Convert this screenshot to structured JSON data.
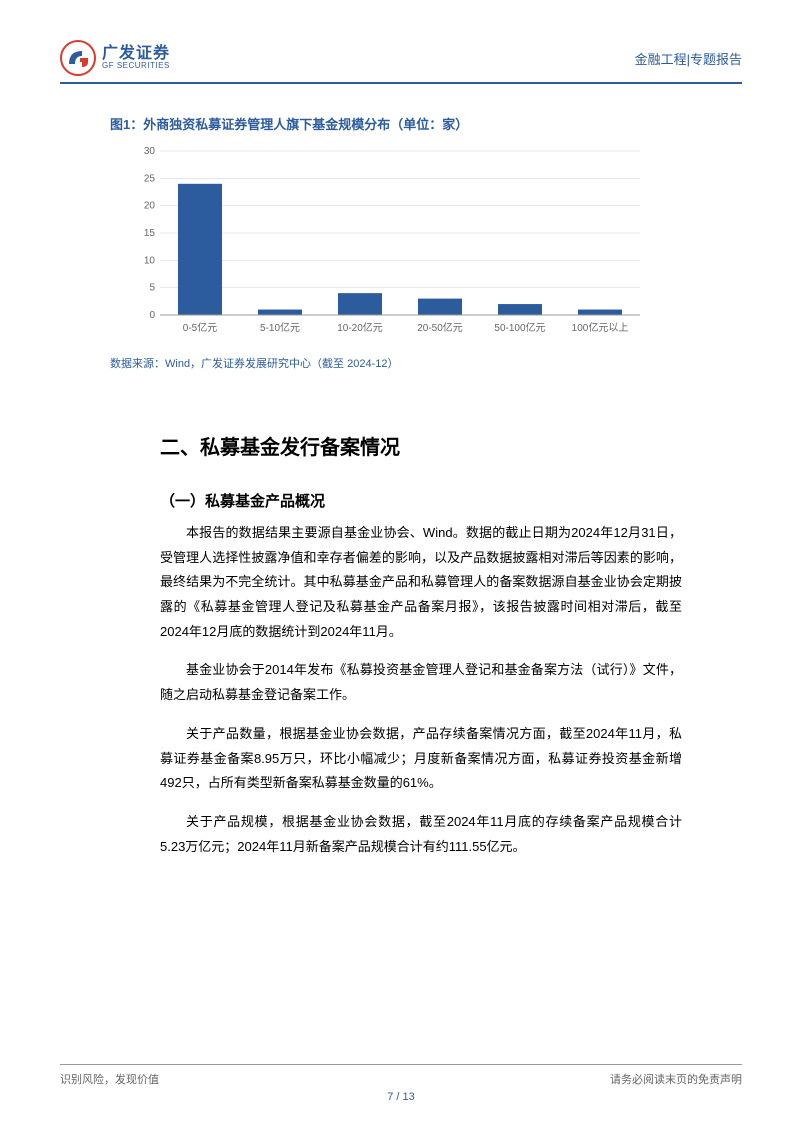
{
  "header": {
    "logo_cn": "广发证券",
    "logo_en": "GF SECURITIES",
    "right": "金融工程|专题报告"
  },
  "chart": {
    "type": "bar",
    "title": "图1：外商独资私募证券管理人旗下基金规模分布（单位：家）",
    "source": "数据来源：Wind，广发证券发展研究中心（截至 2024-12）",
    "categories": [
      "0-5亿元",
      "5-10亿元",
      "10-20亿元",
      "20-50亿元",
      "50-100亿元",
      "100亿元以上"
    ],
    "values": [
      24,
      1,
      4,
      3,
      2,
      1
    ],
    "ylim": [
      0,
      30
    ],
    "ytick_step": 5,
    "bar_color": "#2d5c9e",
    "axis_color": "#999999",
    "grid_color": "#d0d0d0",
    "tick_fontsize": 10,
    "tick_color": "#666666",
    "bar_width_ratio": 0.55
  },
  "section": {
    "heading": "二、私募基金发行备案情况",
    "sub_heading": "（一）私募基金产品概况",
    "paras": [
      "本报告的数据结果主要源自基金业协会、Wind。数据的截止日期为2024年12月31日，受管理人选择性披露净值和幸存者偏差的影响，以及产品数据披露相对滞后等因素的影响，最终结果为不完全统计。其中私募基金产品和私募管理人的备案数据源自基金业协会定期披露的《私募基金管理人登记及私募基金产品备案月报》，该报告披露时间相对滞后，截至2024年12月底的数据统计到2024年11月。",
      "基金业协会于2014年发布《私募投资基金管理人登记和基金备案方法（试行）》文件，随之启动私募基金登记备案工作。",
      "关于产品数量，根据基金业协会数据，产品存续备案情况方面，截至2024年11月，私募证券基金备案8.95万只，环比小幅减少；月度新备案情况方面，私募证券投资基金新增492只，占所有类型新备案私募基金数量的61%。",
      "关于产品规模，根据基金业协会数据，截至2024年11月底的存续备案产品规模合计5.23万亿元；2024年11月新备案产品规模合计有约111.55亿元。"
    ]
  },
  "footer": {
    "left": "识别风险，发现价值",
    "right": "请务必阅读末页的免责声明",
    "page": "7 / 13"
  }
}
